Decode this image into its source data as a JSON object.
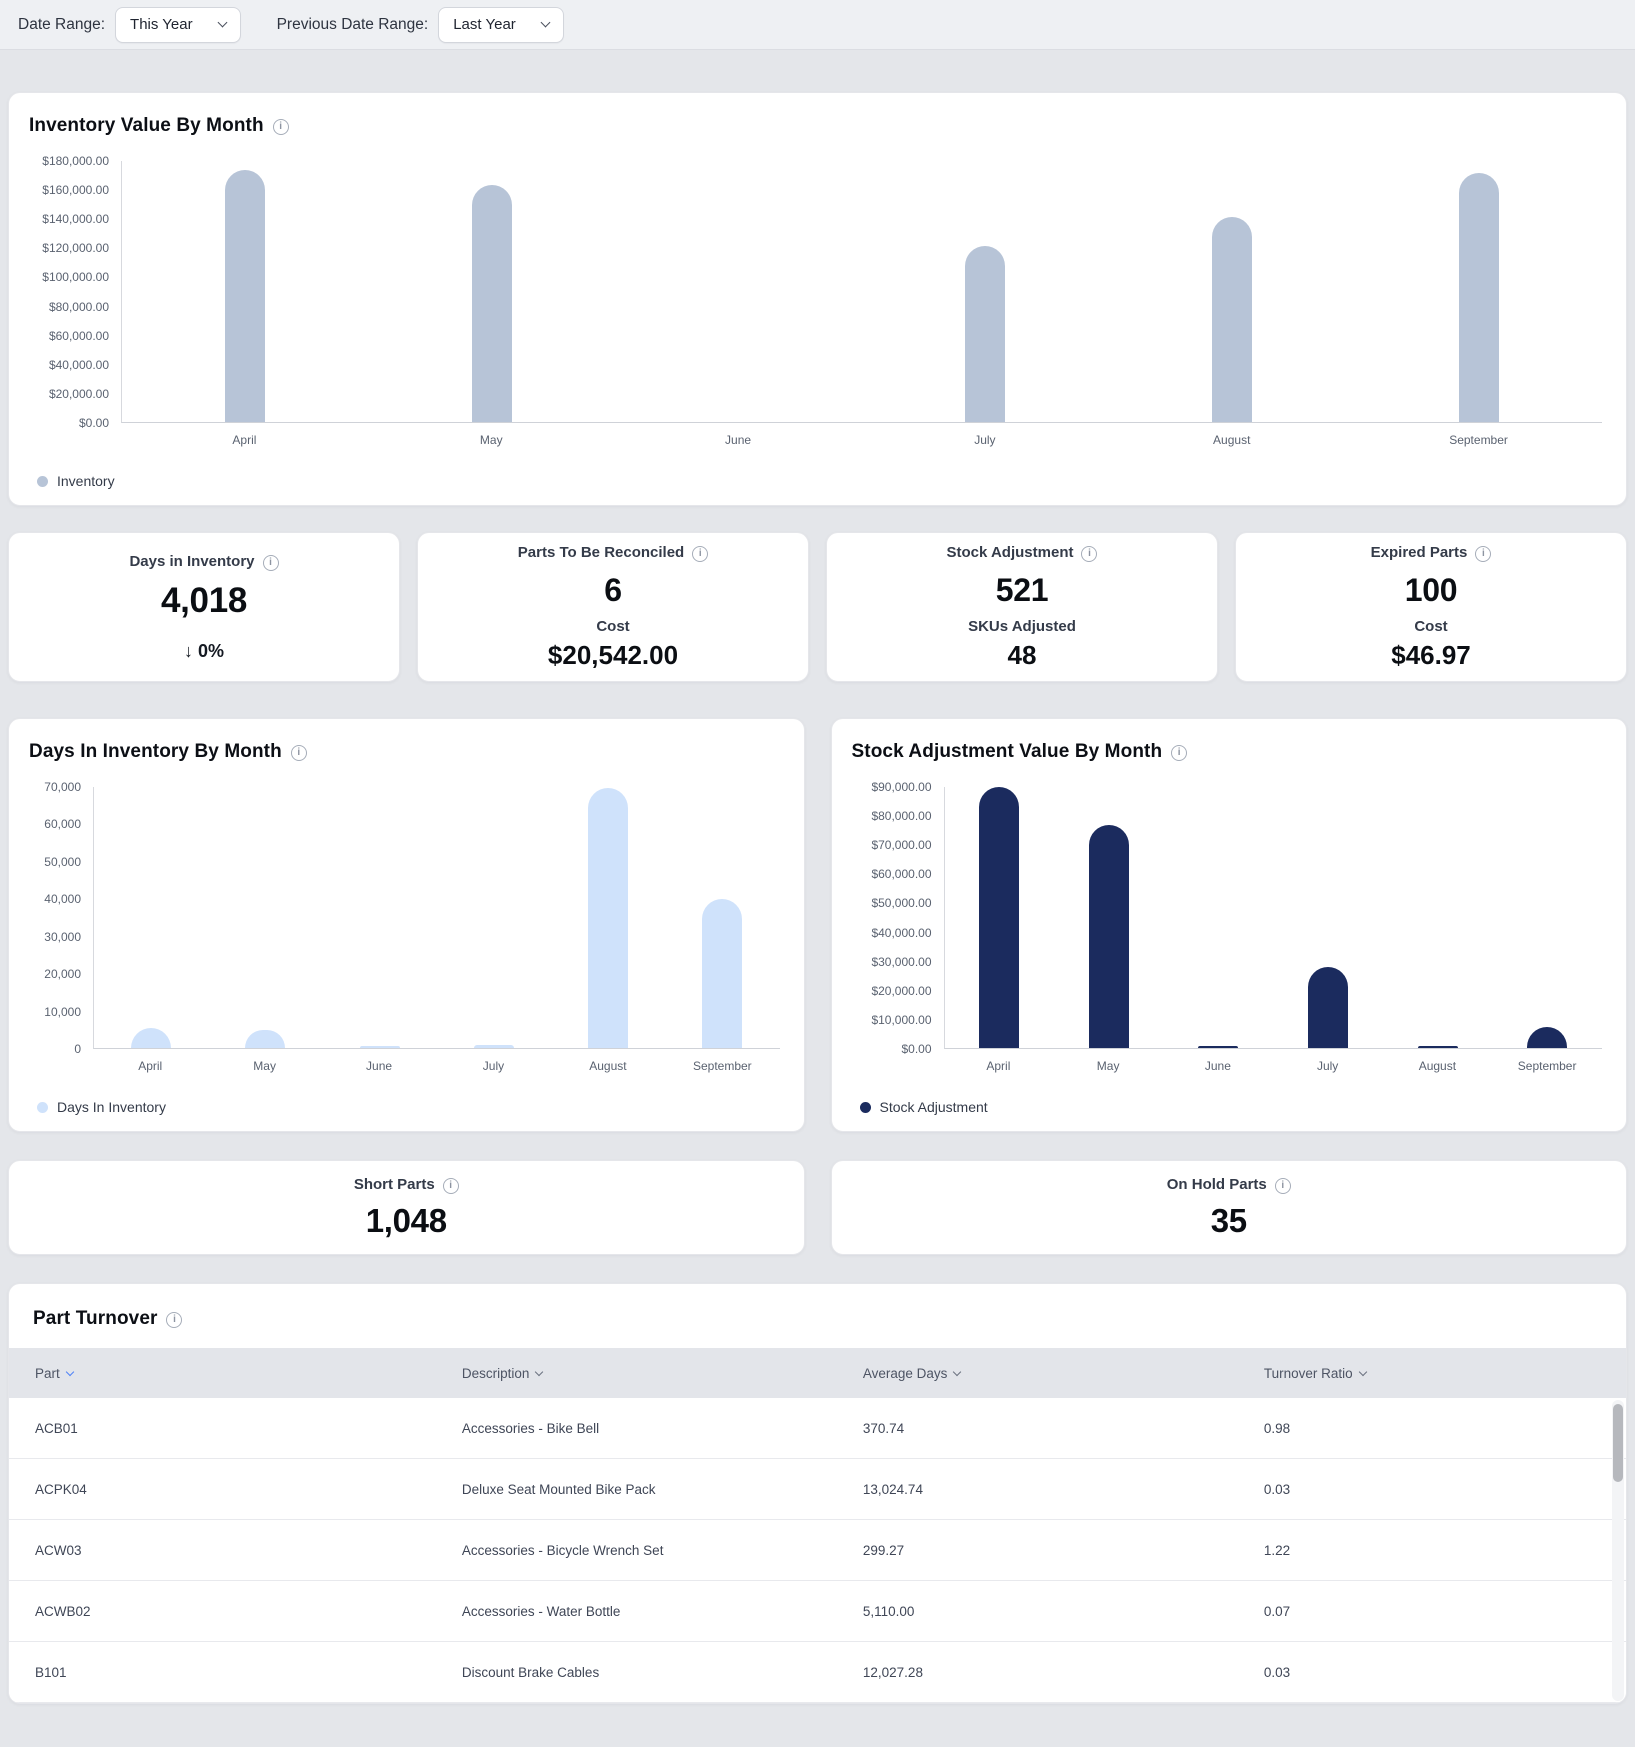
{
  "topbar": {
    "date_range_label": "Date Range:",
    "date_range_value": "This Year",
    "previous_date_range_label": "Previous Date Range:",
    "previous_date_range_value": "Last Year"
  },
  "kpis": [
    {
      "label": "Days in Inventory",
      "value": "4,018",
      "delta": "↓ 0%"
    },
    {
      "label": "Parts To Be Reconciled",
      "value": "6",
      "sub_label": "Cost",
      "sub_value": "$20,542.00"
    },
    {
      "label": "Stock Adjustment",
      "value": "521",
      "sub_label": "SKUs Adjusted",
      "sub_value": "48"
    },
    {
      "label": "Expired Parts",
      "value": "100",
      "sub_label": "Cost",
      "sub_value": "$46.97"
    }
  ],
  "mini_cards": [
    {
      "label": "Short Parts",
      "value": "1,048"
    },
    {
      "label": "On Hold Parts",
      "value": "35"
    }
  ],
  "chart_data": [
    {
      "type": "bar",
      "title": "Inventory Value By Month",
      "categories": [
        "April",
        "May",
        "June",
        "July",
        "August",
        "September"
      ],
      "values": [
        173000,
        163000,
        0,
        121000,
        141000,
        171000
      ],
      "ylim": [
        0,
        180000
      ],
      "y_ticks": [
        "$180,000.00",
        "$160,000.00",
        "$140,000.00",
        "$120,000.00",
        "$100,000.00",
        "$80,000.00",
        "$60,000.00",
        "$40,000.00",
        "$20,000.00",
        "$0.00"
      ],
      "legend": "Inventory",
      "bar_color": "#b7c4d7",
      "grid": false,
      "legend_position": "bottom-left"
    },
    {
      "type": "bar",
      "title": "Days In Inventory By Month",
      "categories": [
        "April",
        "May",
        "June",
        "July",
        "August",
        "September"
      ],
      "values": [
        5400,
        4900,
        150,
        700,
        69500,
        39900
      ],
      "ylim": [
        0,
        70000
      ],
      "y_ticks": [
        "70,000",
        "60,000",
        "50,000",
        "40,000",
        "30,000",
        "20,000",
        "10,000",
        "0"
      ],
      "legend": "Days In Inventory",
      "bar_color": "#cfe2fb",
      "grid": false,
      "legend_position": "bottom-left"
    },
    {
      "type": "bar",
      "title": "Stock Adjustment Value By Month",
      "categories": [
        "April",
        "May",
        "June",
        "July",
        "August",
        "September"
      ],
      "values": [
        89500,
        76500,
        300,
        28000,
        300,
        7300
      ],
      "ylim": [
        0,
        90000
      ],
      "y_ticks": [
        "$90,000.00",
        "$80,000.00",
        "$70,000.00",
        "$60,000.00",
        "$50,000.00",
        "$40,000.00",
        "$30,000.00",
        "$20,000.00",
        "$10,000.00",
        "$0.00"
      ],
      "legend": "Stock Adjustment",
      "bar_color": "#1b2b5e",
      "grid": false,
      "legend_position": "bottom-left"
    }
  ],
  "table": {
    "title": "Part Turnover",
    "columns": [
      "Part",
      "Description",
      "Average Days",
      "Turnover Ratio"
    ],
    "sorted_column": "Part",
    "rows": [
      [
        "ACB01",
        "Accessories - Bike Bell",
        "370.74",
        "0.98"
      ],
      [
        "ACPK04",
        "Deluxe Seat Mounted Bike Pack",
        "13,024.74",
        "0.03"
      ],
      [
        "ACW03",
        "Accessories - Bicycle Wrench Set",
        "299.27",
        "1.22"
      ],
      [
        "ACWB02",
        "Accessories - Water Bottle",
        "5,110.00",
        "0.07"
      ],
      [
        "B101",
        "Discount Brake Cables",
        "12,027.28",
        "0.03"
      ]
    ]
  }
}
